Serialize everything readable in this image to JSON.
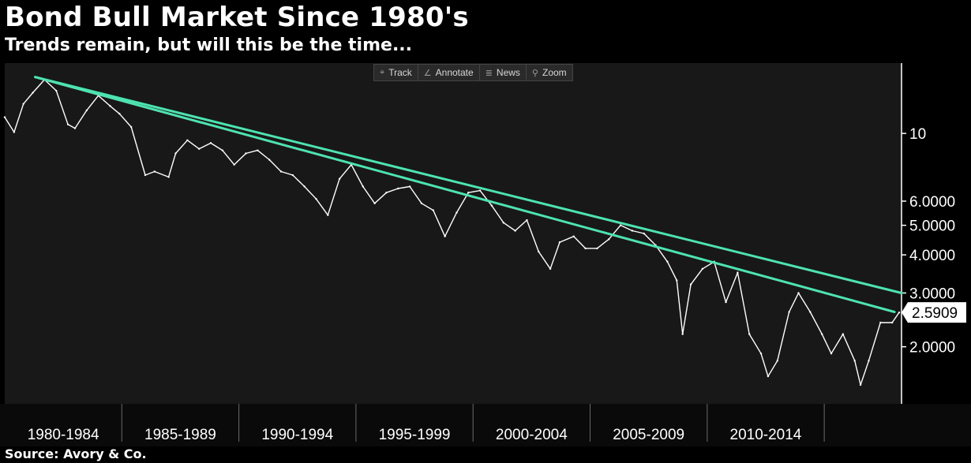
{
  "header": {
    "title": "Bond Bull Market Since 1980's",
    "subtitle": "Trends remain, but will this be the time...",
    "source": "Source: Avory & Co."
  },
  "toolbar": {
    "items": [
      {
        "label": "Track",
        "icon": "crosshair-icon",
        "glyph": "⌖"
      },
      {
        "label": "Annotate",
        "icon": "pencil-icon",
        "glyph": "∠"
      },
      {
        "label": "News",
        "icon": "news-icon",
        "glyph": "≣"
      },
      {
        "label": "Zoom",
        "icon": "magnifier-icon",
        "glyph": "⚲"
      }
    ]
  },
  "chart_data": {
    "type": "line",
    "title": "Bond Bull Market Since 1980's",
    "subtitle": "Trends remain, but will this be the time...",
    "xlabel": "",
    "ylabel": "",
    "y_scale": "log",
    "ylim": [
      1.3,
      17
    ],
    "xlim": [
      1980.0,
      2018.3
    ],
    "y_ticks": [
      {
        "value": 10,
        "label": "10"
      },
      {
        "value": 6,
        "label": "6.0000"
      },
      {
        "value": 5,
        "label": "5.0000"
      },
      {
        "value": 4,
        "label": "4.0000"
      },
      {
        "value": 3,
        "label": "3.0000"
      },
      {
        "value": 2,
        "label": "2.0000"
      }
    ],
    "x_categories": [
      "1980-1984",
      "1985-1989",
      "1990-1994",
      "1995-1999",
      "2000-2004",
      "2005-2009",
      "2010-2014",
      ""
    ],
    "last_value_label": "2.5909",
    "last_value": 2.59,
    "series": [
      {
        "color": "#ffffff",
        "x": [
          1980.0,
          1980.4,
          1980.8,
          1981.2,
          1981.7,
          1982.2,
          1982.7,
          1983.0,
          1983.5,
          1984.0,
          1984.5,
          1984.9,
          1985.4,
          1986.0,
          1986.4,
          1987.0,
          1987.3,
          1987.8,
          1988.3,
          1988.8,
          1989.3,
          1989.8,
          1990.3,
          1990.8,
          1991.3,
          1991.8,
          1992.3,
          1992.8,
          1993.3,
          1993.8,
          1994.3,
          1994.8,
          1995.3,
          1995.8,
          1996.3,
          1996.8,
          1997.3,
          1997.8,
          1998.3,
          1998.8,
          1999.3,
          1999.8,
          2000.3,
          2000.8,
          2001.3,
          2001.8,
          2002.3,
          2002.8,
          2003.3,
          2003.7,
          2004.3,
          2004.8,
          2005.3,
          2005.8,
          2006.3,
          2006.8,
          2007.3,
          2007.8,
          2008.3,
          2008.7,
          2008.95,
          2009.3,
          2009.8,
          2010.3,
          2010.8,
          2011.3,
          2011.8,
          2012.3,
          2012.6,
          2013.0,
          2013.5,
          2013.9,
          2014.4,
          2014.9,
          2015.3,
          2015.8,
          2016.3,
          2016.55,
          2016.9,
          2017.4,
          2017.9,
          2018.2
        ],
        "y": [
          11.3,
          10.1,
          12.5,
          13.6,
          15.0,
          13.8,
          10.7,
          10.4,
          11.9,
          13.3,
          12.3,
          11.6,
          10.5,
          7.3,
          7.5,
          7.2,
          8.6,
          9.5,
          8.9,
          9.3,
          8.8,
          7.9,
          8.6,
          8.8,
          8.2,
          7.5,
          7.3,
          6.7,
          6.1,
          5.4,
          7.1,
          7.9,
          6.7,
          5.9,
          6.4,
          6.6,
          6.7,
          5.9,
          5.6,
          4.6,
          5.5,
          6.4,
          6.5,
          5.8,
          5.1,
          4.8,
          5.2,
          4.1,
          3.6,
          4.4,
          4.6,
          4.2,
          4.2,
          4.5,
          5.0,
          4.8,
          4.7,
          4.3,
          3.8,
          3.3,
          2.2,
          3.2,
          3.6,
          3.8,
          2.8,
          3.5,
          2.2,
          1.9,
          1.6,
          1.8,
          2.6,
          3.0,
          2.6,
          2.2,
          1.9,
          2.2,
          1.8,
          1.5,
          1.8,
          2.4,
          2.4,
          2.59
        ]
      },
      {
        "color": "#4ee3b0",
        "type": "trendline",
        "x": [
          1981.3,
          2018.3
        ],
        "y": [
          15.3,
          3.0
        ]
      },
      {
        "color": "#4ee3b0",
        "type": "trendline",
        "x": [
          1981.3,
          2018.0
        ],
        "y": [
          15.3,
          2.6
        ]
      }
    ],
    "grid": false,
    "legend": "none"
  }
}
